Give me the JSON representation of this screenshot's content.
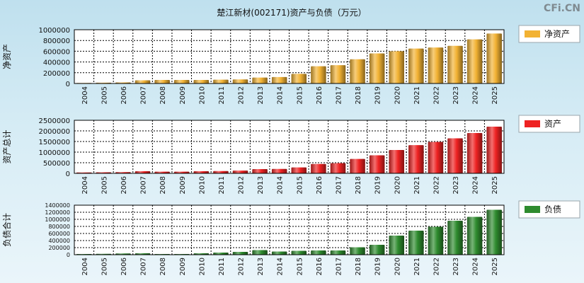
{
  "title": "楚江新材(002171)资产与负债（万元）",
  "watermark": "CFi.CN",
  "colors": {
    "equity": "#f2b233",
    "assets": "#ee2222",
    "liabilities": "#2e8b2e"
  },
  "chart_data": [
    {
      "type": "bar",
      "ylabel": "净资产",
      "legend": "净资产",
      "colorKey": "equity",
      "categories": [
        "2004",
        "2005",
        "2006",
        "2007",
        "2008",
        "2009",
        "2010",
        "2011",
        "2012",
        "2013",
        "2014",
        "2015",
        "2016",
        "2017",
        "2018",
        "2019",
        "2020",
        "2021",
        "2022",
        "2023",
        "2024",
        "2025"
      ],
      "values": [
        10000,
        15000,
        20000,
        60000,
        65000,
        65000,
        65000,
        70000,
        75000,
        110000,
        120000,
        180000,
        320000,
        340000,
        450000,
        560000,
        600000,
        650000,
        670000,
        700000,
        820000,
        930000
      ],
      "ylim": [
        0,
        1000000
      ],
      "yticks": [
        0,
        200000,
        400000,
        600000,
        800000,
        1000000
      ]
    },
    {
      "type": "bar",
      "ylabel": "资产总计",
      "legend": "资产",
      "colorKey": "assets",
      "categories": [
        "2004",
        "2005",
        "2006",
        "2007",
        "2008",
        "2009",
        "2010",
        "2011",
        "2012",
        "2013",
        "2014",
        "2015",
        "2016",
        "2017",
        "2018",
        "2019",
        "2020",
        "2021",
        "2022",
        "2023",
        "2024",
        "2025"
      ],
      "values": [
        40000,
        50000,
        60000,
        100000,
        80000,
        80000,
        100000,
        110000,
        130000,
        200000,
        210000,
        280000,
        440000,
        480000,
        680000,
        850000,
        1100000,
        1330000,
        1480000,
        1650000,
        1900000,
        2200000
      ],
      "ylim": [
        0,
        2500000
      ],
      "yticks": [
        0,
        500000,
        1000000,
        1500000,
        2000000,
        2500000
      ]
    },
    {
      "type": "bar",
      "ylabel": "负债合计",
      "legend": "负债",
      "colorKey": "liabilities",
      "categories": [
        "2004",
        "2005",
        "2006",
        "2007",
        "2008",
        "2009",
        "2010",
        "2011",
        "2012",
        "2013",
        "2014",
        "2015",
        "2016",
        "2017",
        "2018",
        "2019",
        "2020",
        "2021",
        "2022",
        "2023",
        "2024",
        "2025"
      ],
      "values": [
        20000,
        25000,
        35000,
        40000,
        20000,
        20000,
        40000,
        60000,
        80000,
        130000,
        90000,
        110000,
        120000,
        120000,
        210000,
        280000,
        540000,
        680000,
        790000,
        960000,
        1070000,
        1270000
      ],
      "ylim": [
        0,
        1400000
      ],
      "yticks": [
        0,
        200000,
        400000,
        600000,
        800000,
        1000000,
        1200000,
        1400000
      ]
    }
  ]
}
